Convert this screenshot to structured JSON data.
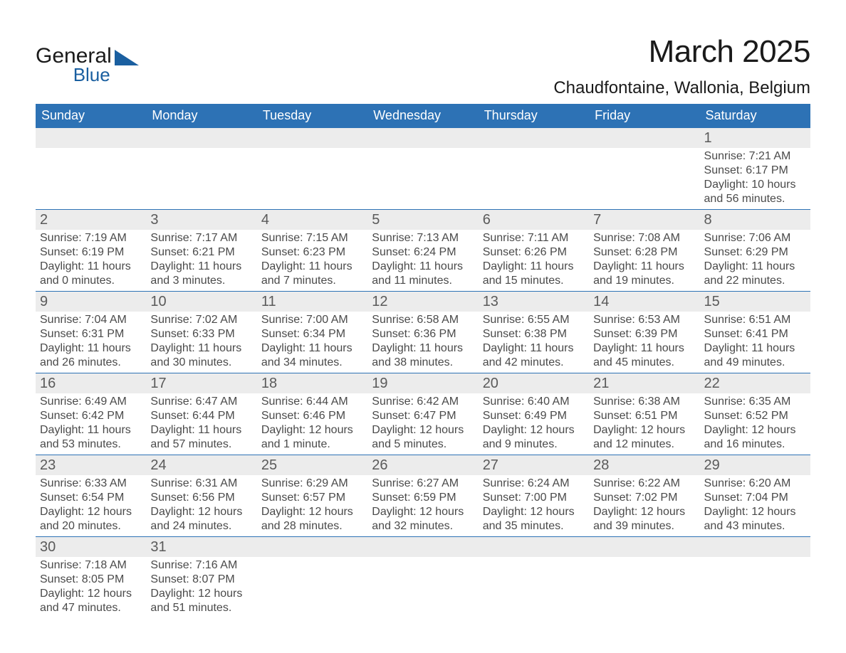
{
  "brand": {
    "name_line1": "General",
    "name_line2": "Blue",
    "accent_color": "#2d72b5"
  },
  "title": "March 2025",
  "location": "Chaudfontaine, Wallonia, Belgium",
  "day_headers": [
    "Sunday",
    "Monday",
    "Tuesday",
    "Wednesday",
    "Thursday",
    "Friday",
    "Saturday"
  ],
  "colors": {
    "header_bg": "#2d72b5",
    "header_text": "#ffffff",
    "row_divider": "#2d72b5",
    "daynum_bg": "#ececec",
    "text": "#4a4a4a",
    "title_text": "#1a1a1a",
    "page_bg": "#ffffff"
  },
  "typography": {
    "title_fontsize": 44,
    "location_fontsize": 24,
    "header_fontsize": 18,
    "daynum_fontsize": 20,
    "body_fontsize": 16,
    "font_family": "Arial"
  },
  "weeks": [
    [
      null,
      null,
      null,
      null,
      null,
      null,
      {
        "d": "1",
        "sunrise": "Sunrise: 7:21 AM",
        "sunset": "Sunset: 6:17 PM",
        "daylight1": "Daylight: 10 hours",
        "daylight2": "and 56 minutes."
      }
    ],
    [
      {
        "d": "2",
        "sunrise": "Sunrise: 7:19 AM",
        "sunset": "Sunset: 6:19 PM",
        "daylight1": "Daylight: 11 hours",
        "daylight2": "and 0 minutes."
      },
      {
        "d": "3",
        "sunrise": "Sunrise: 7:17 AM",
        "sunset": "Sunset: 6:21 PM",
        "daylight1": "Daylight: 11 hours",
        "daylight2": "and 3 minutes."
      },
      {
        "d": "4",
        "sunrise": "Sunrise: 7:15 AM",
        "sunset": "Sunset: 6:23 PM",
        "daylight1": "Daylight: 11 hours",
        "daylight2": "and 7 minutes."
      },
      {
        "d": "5",
        "sunrise": "Sunrise: 7:13 AM",
        "sunset": "Sunset: 6:24 PM",
        "daylight1": "Daylight: 11 hours",
        "daylight2": "and 11 minutes."
      },
      {
        "d": "6",
        "sunrise": "Sunrise: 7:11 AM",
        "sunset": "Sunset: 6:26 PM",
        "daylight1": "Daylight: 11 hours",
        "daylight2": "and 15 minutes."
      },
      {
        "d": "7",
        "sunrise": "Sunrise: 7:08 AM",
        "sunset": "Sunset: 6:28 PM",
        "daylight1": "Daylight: 11 hours",
        "daylight2": "and 19 minutes."
      },
      {
        "d": "8",
        "sunrise": "Sunrise: 7:06 AM",
        "sunset": "Sunset: 6:29 PM",
        "daylight1": "Daylight: 11 hours",
        "daylight2": "and 22 minutes."
      }
    ],
    [
      {
        "d": "9",
        "sunrise": "Sunrise: 7:04 AM",
        "sunset": "Sunset: 6:31 PM",
        "daylight1": "Daylight: 11 hours",
        "daylight2": "and 26 minutes."
      },
      {
        "d": "10",
        "sunrise": "Sunrise: 7:02 AM",
        "sunset": "Sunset: 6:33 PM",
        "daylight1": "Daylight: 11 hours",
        "daylight2": "and 30 minutes."
      },
      {
        "d": "11",
        "sunrise": "Sunrise: 7:00 AM",
        "sunset": "Sunset: 6:34 PM",
        "daylight1": "Daylight: 11 hours",
        "daylight2": "and 34 minutes."
      },
      {
        "d": "12",
        "sunrise": "Sunrise: 6:58 AM",
        "sunset": "Sunset: 6:36 PM",
        "daylight1": "Daylight: 11 hours",
        "daylight2": "and 38 minutes."
      },
      {
        "d": "13",
        "sunrise": "Sunrise: 6:55 AM",
        "sunset": "Sunset: 6:38 PM",
        "daylight1": "Daylight: 11 hours",
        "daylight2": "and 42 minutes."
      },
      {
        "d": "14",
        "sunrise": "Sunrise: 6:53 AM",
        "sunset": "Sunset: 6:39 PM",
        "daylight1": "Daylight: 11 hours",
        "daylight2": "and 45 minutes."
      },
      {
        "d": "15",
        "sunrise": "Sunrise: 6:51 AM",
        "sunset": "Sunset: 6:41 PM",
        "daylight1": "Daylight: 11 hours",
        "daylight2": "and 49 minutes."
      }
    ],
    [
      {
        "d": "16",
        "sunrise": "Sunrise: 6:49 AM",
        "sunset": "Sunset: 6:42 PM",
        "daylight1": "Daylight: 11 hours",
        "daylight2": "and 53 minutes."
      },
      {
        "d": "17",
        "sunrise": "Sunrise: 6:47 AM",
        "sunset": "Sunset: 6:44 PM",
        "daylight1": "Daylight: 11 hours",
        "daylight2": "and 57 minutes."
      },
      {
        "d": "18",
        "sunrise": "Sunrise: 6:44 AM",
        "sunset": "Sunset: 6:46 PM",
        "daylight1": "Daylight: 12 hours",
        "daylight2": "and 1 minute."
      },
      {
        "d": "19",
        "sunrise": "Sunrise: 6:42 AM",
        "sunset": "Sunset: 6:47 PM",
        "daylight1": "Daylight: 12 hours",
        "daylight2": "and 5 minutes."
      },
      {
        "d": "20",
        "sunrise": "Sunrise: 6:40 AM",
        "sunset": "Sunset: 6:49 PM",
        "daylight1": "Daylight: 12 hours",
        "daylight2": "and 9 minutes."
      },
      {
        "d": "21",
        "sunrise": "Sunrise: 6:38 AM",
        "sunset": "Sunset: 6:51 PM",
        "daylight1": "Daylight: 12 hours",
        "daylight2": "and 12 minutes."
      },
      {
        "d": "22",
        "sunrise": "Sunrise: 6:35 AM",
        "sunset": "Sunset: 6:52 PM",
        "daylight1": "Daylight: 12 hours",
        "daylight2": "and 16 minutes."
      }
    ],
    [
      {
        "d": "23",
        "sunrise": "Sunrise: 6:33 AM",
        "sunset": "Sunset: 6:54 PM",
        "daylight1": "Daylight: 12 hours",
        "daylight2": "and 20 minutes."
      },
      {
        "d": "24",
        "sunrise": "Sunrise: 6:31 AM",
        "sunset": "Sunset: 6:56 PM",
        "daylight1": "Daylight: 12 hours",
        "daylight2": "and 24 minutes."
      },
      {
        "d": "25",
        "sunrise": "Sunrise: 6:29 AM",
        "sunset": "Sunset: 6:57 PM",
        "daylight1": "Daylight: 12 hours",
        "daylight2": "and 28 minutes."
      },
      {
        "d": "26",
        "sunrise": "Sunrise: 6:27 AM",
        "sunset": "Sunset: 6:59 PM",
        "daylight1": "Daylight: 12 hours",
        "daylight2": "and 32 minutes."
      },
      {
        "d": "27",
        "sunrise": "Sunrise: 6:24 AM",
        "sunset": "Sunset: 7:00 PM",
        "daylight1": "Daylight: 12 hours",
        "daylight2": "and 35 minutes."
      },
      {
        "d": "28",
        "sunrise": "Sunrise: 6:22 AM",
        "sunset": "Sunset: 7:02 PM",
        "daylight1": "Daylight: 12 hours",
        "daylight2": "and 39 minutes."
      },
      {
        "d": "29",
        "sunrise": "Sunrise: 6:20 AM",
        "sunset": "Sunset: 7:04 PM",
        "daylight1": "Daylight: 12 hours",
        "daylight2": "and 43 minutes."
      }
    ],
    [
      {
        "d": "30",
        "sunrise": "Sunrise: 7:18 AM",
        "sunset": "Sunset: 8:05 PM",
        "daylight1": "Daylight: 12 hours",
        "daylight2": "and 47 minutes."
      },
      {
        "d": "31",
        "sunrise": "Sunrise: 7:16 AM",
        "sunset": "Sunset: 8:07 PM",
        "daylight1": "Daylight: 12 hours",
        "daylight2": "and 51 minutes."
      },
      null,
      null,
      null,
      null,
      null
    ]
  ]
}
